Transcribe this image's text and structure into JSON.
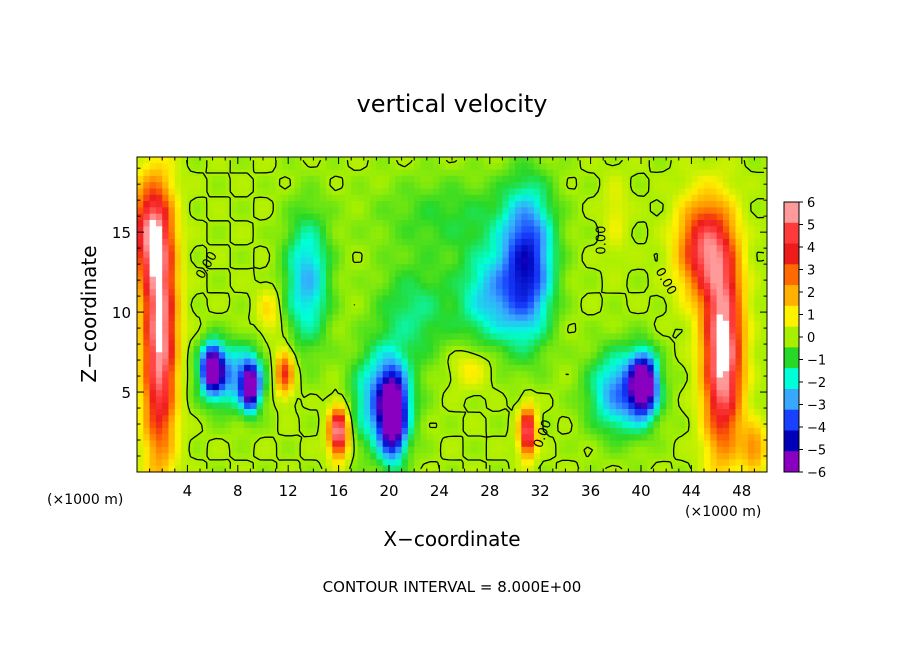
{
  "chart_data": {
    "type": "heatmap",
    "title": "vertical velocity",
    "xlabel": "X−coordinate",
    "ylabel": "Z−coordinate",
    "x_unit_left": "(×1000 m)",
    "x_unit_right": "(×1000 m)",
    "footer": "CONTOUR INTERVAL = 8.000E+00",
    "xlim": [
      0,
      50
    ],
    "ylim": [
      0,
      19.7
    ],
    "x_ticks": [
      4,
      8,
      12,
      16,
      20,
      24,
      28,
      32,
      36,
      40,
      44,
      48
    ],
    "y_ticks": [
      5,
      10,
      15
    ],
    "colorbar": {
      "range": [
        -6,
        6
      ],
      "ticks": [
        6,
        5,
        4,
        3,
        2,
        1,
        0,
        -1,
        -2,
        -3,
        -4,
        -5,
        -6
      ],
      "tick_labels": [
        "6",
        "5",
        "4",
        "3",
        "2",
        "1",
        "0",
        "−1",
        "−2",
        "−3",
        "−4",
        "−5",
        "−6"
      ],
      "colors": [
        "#ff9a9a",
        "#ff3a3a",
        "#ee1b1b",
        "#ff6a00",
        "#ffb000",
        "#fff200",
        "#a8f000",
        "#28d828",
        "#00ffd8",
        "#38a8ff",
        "#1840ff",
        "#0000b8",
        "#8a00c0"
      ]
    },
    "contour_labels": [
      {
        "text": "0.00",
        "x": 5.8,
        "y": 12.8,
        "angle": -60
      },
      {
        "text": "0.00",
        "x": 37.2,
        "y": 14.5,
        "angle": -90
      },
      {
        "text": "0.00",
        "x": 41.7,
        "y": 11.8,
        "angle": 60
      },
      {
        "text": "0.00",
        "x": 32.5,
        "y": 2.3,
        "angle": -70
      }
    ],
    "features": [
      {
        "x": 1.8,
        "y": 8.5,
        "w": 2.6,
        "h": 15,
        "v": 6.5
      },
      {
        "x": 1.0,
        "y": 15.0,
        "w": 3.0,
        "h": 6,
        "v": 4.5
      },
      {
        "x": 6.0,
        "y": 6.5,
        "w": 1.6,
        "h": 2.8,
        "v": -6.5
      },
      {
        "x": 9.0,
        "y": 5.3,
        "w": 1.4,
        "h": 2.8,
        "v": -6.2
      },
      {
        "x": 7.5,
        "y": 6.0,
        "w": 5.0,
        "h": 4.0,
        "v": -3.0
      },
      {
        "x": 11.7,
        "y": 6.2,
        "w": 1.5,
        "h": 2.8,
        "v": 4.0
      },
      {
        "x": 10.5,
        "y": 10.0,
        "w": 1.8,
        "h": 3.0,
        "v": 1.4
      },
      {
        "x": 13.5,
        "y": 12.0,
        "w": 3.5,
        "h": 8.0,
        "v": -2.8
      },
      {
        "x": 16.0,
        "y": 2.5,
        "w": 1.5,
        "h": 3.0,
        "v": 6.5
      },
      {
        "x": 20.3,
        "y": 3.5,
        "w": 2.0,
        "h": 5.0,
        "v": -6.5
      },
      {
        "x": 19.5,
        "y": 4.5,
        "w": 4.5,
        "h": 6.0,
        "v": -3.5
      },
      {
        "x": 26.5,
        "y": 6.5,
        "w": 3.0,
        "h": 2.5,
        "v": 1.2
      },
      {
        "x": 31.0,
        "y": 2.5,
        "w": 1.3,
        "h": 3.0,
        "v": 5.8
      },
      {
        "x": 31.0,
        "y": 13.0,
        "w": 4.0,
        "h": 9.0,
        "v": -4.5
      },
      {
        "x": 28.0,
        "y": 11.0,
        "w": 5.0,
        "h": 6.0,
        "v": -2.5
      },
      {
        "x": 38.0,
        "y": 16.0,
        "w": 2.0,
        "h": 5.0,
        "v": 0.8
      },
      {
        "x": 40.2,
        "y": 5.5,
        "w": 2.0,
        "h": 3.5,
        "v": -6.8
      },
      {
        "x": 38.5,
        "y": 5.0,
        "w": 5.0,
        "h": 5.0,
        "v": -3.5
      },
      {
        "x": 46.5,
        "y": 7.5,
        "w": 3.0,
        "h": 12,
        "v": 7.0
      },
      {
        "x": 45.0,
        "y": 14.0,
        "w": 4.0,
        "h": 6.0,
        "v": 5.0
      },
      {
        "x": 49.0,
        "y": 1.5,
        "w": 2.0,
        "h": 3.0,
        "v": 2.5
      },
      {
        "x": 25.0,
        "y": 16.0,
        "w": 12.0,
        "h": 5.0,
        "v": -1.0
      },
      {
        "x": 22.0,
        "y": 10.0,
        "w": 6.0,
        "h": 6.0,
        "v": -1.5
      }
    ]
  }
}
